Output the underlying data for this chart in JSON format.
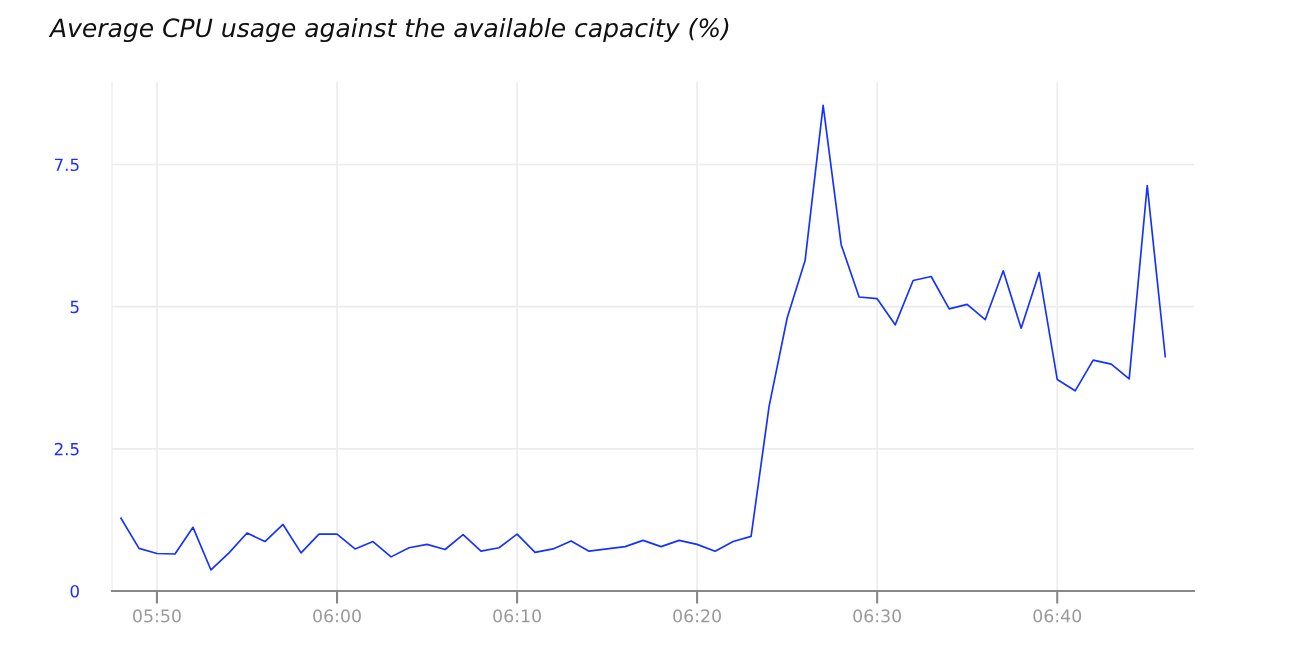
{
  "chart_data": {
    "type": "line",
    "title": "Average CPU usage against the available capacity (%)",
    "x": [
      5.8,
      5.8167,
      5.8333,
      5.85,
      5.8667,
      5.8833,
      5.9,
      5.9167,
      5.9333,
      5.95,
      5.9667,
      5.9833,
      6.0,
      6.0167,
      6.0333,
      6.05,
      6.0667,
      6.0833,
      6.1,
      6.1167,
      6.1333,
      6.15,
      6.1667,
      6.1833,
      6.2,
      6.2167,
      6.2333,
      6.25,
      6.2667,
      6.2833,
      6.3,
      6.3167,
      6.3333,
      6.35,
      6.3667,
      6.3833,
      6.4,
      6.4167,
      6.4333,
      6.45,
      6.4667,
      6.4833,
      6.5,
      6.5167,
      6.5333,
      6.55,
      6.5667,
      6.5833,
      6.6,
      6.6167,
      6.6333,
      6.65,
      6.6667,
      6.6833,
      6.7,
      6.7167,
      6.7333,
      6.75,
      6.7667
    ],
    "series": [
      {
        "color": "#1432ff",
        "values": [
          1.28,
          0.75,
          0.66,
          0.65,
          1.12,
          0.37,
          0.67,
          1.02,
          0.87,
          1.17,
          0.67,
          1.0,
          1.0,
          0.74,
          0.87,
          0.6,
          0.76,
          0.82,
          0.73,
          0.99,
          0.7,
          0.76,
          1.0,
          0.68,
          0.74,
          0.88,
          0.7,
          0.74,
          0.78,
          0.89,
          0.78,
          0.89,
          0.82,
          0.7,
          0.87,
          0.96,
          3.25,
          4.8,
          5.81,
          8.54,
          6.09,
          5.17,
          5.14,
          4.68,
          5.46,
          5.53,
          4.96,
          5.04,
          4.77,
          5.63,
          4.62,
          5.6,
          3.72,
          3.52,
          4.06,
          3.99,
          3.73,
          7.13,
          4.12
        ]
      }
    ],
    "xlim": [
      5.7917,
      6.7933
    ],
    "xticks": [
      {
        "value": 5.8333,
        "label": "05:50"
      },
      {
        "value": 6.0,
        "label": "06:00"
      },
      {
        "value": 6.1667,
        "label": "06:10"
      },
      {
        "value": 6.3333,
        "label": "06:20"
      },
      {
        "value": 6.5,
        "label": "06:30"
      },
      {
        "value": 6.6667,
        "label": "06:40"
      }
    ],
    "ylim": [
      0,
      8.95
    ],
    "yticks": [
      0,
      2.5,
      5,
      7.5
    ],
    "grid": true,
    "marker": "none",
    "line_style": "solid"
  }
}
